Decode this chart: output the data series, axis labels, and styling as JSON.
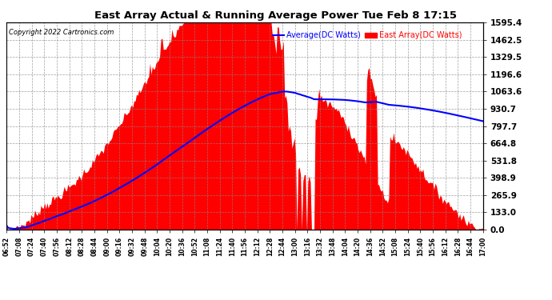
{
  "title": "East Array Actual & Running Average Power Tue Feb 8 17:15",
  "copyright": "Copyright 2022 Cartronics.com",
  "legend_average": "Average(DC Watts)",
  "legend_east": "East Array(DC Watts)",
  "yticks": [
    0.0,
    133.0,
    265.9,
    398.9,
    531.8,
    664.8,
    797.7,
    930.7,
    1063.6,
    1196.6,
    1329.5,
    1462.5,
    1595.4
  ],
  "ymax": 1595.4,
  "ymin": 0.0,
  "fill_color": "#ff0000",
  "line_color": "#0000ff",
  "bg_color": "#ffffff",
  "title_color": "#000000",
  "copyright_color": "#000000",
  "legend_avg_color": "#0000ff",
  "legend_east_color": "#ff0000",
  "grid_color": "#888888",
  "xtick_labels": [
    "06:52",
    "07:08",
    "07:24",
    "07:40",
    "07:56",
    "08:12",
    "08:28",
    "08:44",
    "09:00",
    "09:16",
    "09:32",
    "09:48",
    "10:04",
    "10:20",
    "10:36",
    "10:52",
    "11:08",
    "11:24",
    "11:40",
    "11:56",
    "12:12",
    "12:28",
    "12:44",
    "13:00",
    "13:16",
    "13:32",
    "13:48",
    "14:04",
    "14:20",
    "14:36",
    "14:52",
    "15:08",
    "15:24",
    "15:40",
    "15:56",
    "16:12",
    "16:28",
    "16:44",
    "17:00"
  ],
  "n_dense": 390
}
